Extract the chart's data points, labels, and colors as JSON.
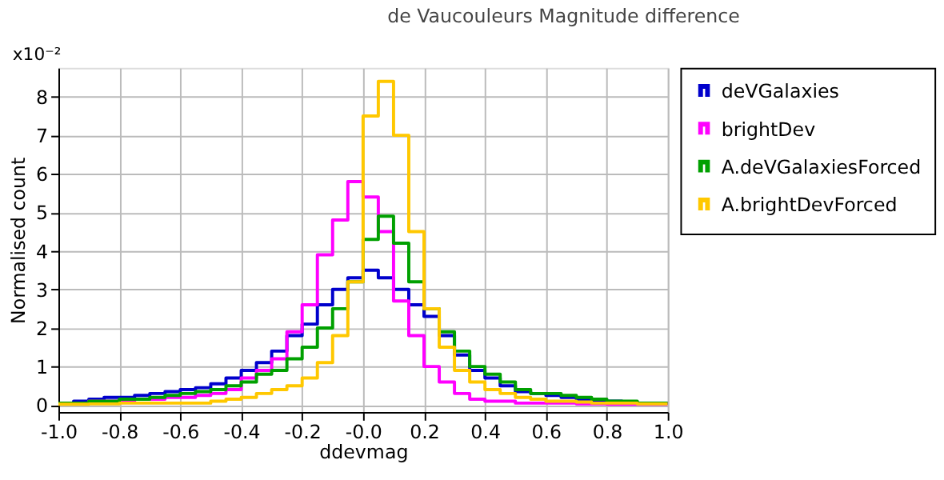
{
  "chart_data": {
    "type": "histogram",
    "title": "de Vaucouleurs Magnitude difference",
    "xlabel": "ddevmag",
    "ylabel": "Normalised count",
    "annotations": [
      "x10⁻²"
    ],
    "bins": [
      -1.0,
      -0.95,
      -0.9,
      -0.85,
      -0.8,
      -0.75,
      -0.7,
      -0.65,
      -0.6,
      -0.55,
      -0.5,
      -0.45,
      -0.4,
      -0.35,
      -0.3,
      -0.25,
      -0.2,
      -0.15,
      -0.1,
      -0.05,
      0.0,
      0.05,
      0.1,
      0.15,
      0.2,
      0.25,
      0.3,
      0.35,
      0.4,
      0.45,
      0.5,
      0.55,
      0.6,
      0.65,
      0.7,
      0.75,
      0.8,
      0.85,
      0.9,
      0.95,
      1.0
    ],
    "series": [
      {
        "name": "deVGalaxies",
        "color": "#0000cc",
        "values": [
          0.05,
          0.1,
          0.15,
          0.2,
          0.2,
          0.25,
          0.3,
          0.35,
          0.4,
          0.45,
          0.55,
          0.7,
          0.9,
          1.1,
          1.4,
          1.8,
          2.1,
          2.6,
          3.0,
          3.3,
          3.5,
          3.3,
          3.0,
          2.6,
          2.3,
          1.8,
          1.3,
          0.9,
          0.7,
          0.5,
          0.35,
          0.3,
          0.25,
          0.2,
          0.15,
          0.1,
          0.1,
          0.08,
          0.05,
          0.05
        ]
      },
      {
        "name": "brightDev",
        "color": "#ff00ff",
        "values": [
          0.05,
          0.05,
          0.1,
          0.1,
          0.1,
          0.15,
          0.15,
          0.2,
          0.2,
          0.25,
          0.3,
          0.4,
          0.7,
          0.9,
          1.2,
          1.9,
          2.6,
          3.9,
          4.8,
          5.8,
          5.4,
          4.5,
          2.7,
          1.8,
          1.0,
          0.6,
          0.3,
          0.15,
          0.1,
          0.1,
          0.05,
          0.05,
          0.05,
          0.05,
          0.03,
          0.03,
          0.02,
          0.02,
          0.02,
          0.02
        ]
      },
      {
        "name": "A.deVGalaxiesForced",
        "color": "#00a000",
        "values": [
          0.05,
          0.05,
          0.1,
          0.1,
          0.15,
          0.15,
          0.2,
          0.25,
          0.3,
          0.35,
          0.4,
          0.5,
          0.6,
          0.8,
          0.9,
          1.2,
          1.5,
          2.0,
          2.5,
          3.2,
          4.3,
          4.9,
          4.2,
          3.2,
          2.5,
          1.9,
          1.4,
          1.0,
          0.8,
          0.6,
          0.4,
          0.3,
          0.3,
          0.25,
          0.2,
          0.15,
          0.1,
          0.1,
          0.05,
          0.05
        ]
      },
      {
        "name": "A.brightDevForced",
        "color": "#ffc800",
        "values": [
          0.02,
          0.02,
          0.03,
          0.03,
          0.05,
          0.05,
          0.05,
          0.05,
          0.05,
          0.05,
          0.1,
          0.15,
          0.2,
          0.3,
          0.4,
          0.5,
          0.7,
          1.1,
          1.8,
          3.2,
          7.5,
          8.4,
          7.0,
          4.5,
          2.5,
          1.5,
          0.9,
          0.6,
          0.4,
          0.3,
          0.2,
          0.15,
          0.1,
          0.1,
          0.08,
          0.05,
          0.05,
          0.05,
          0.03,
          0.03
        ]
      }
    ],
    "xlim": [
      -1.0,
      1.0
    ],
    "xticks": [
      {
        "value": -1.0,
        "label": "-1.0"
      },
      {
        "value": -0.8,
        "label": "-0.8"
      },
      {
        "value": -0.6,
        "label": "-0.6"
      },
      {
        "value": -0.4,
        "label": "-0.4"
      },
      {
        "value": -0.2,
        "label": "-0.2"
      },
      {
        "value": 0.0,
        "label": "-0.0"
      },
      0.2,
      0.4,
      0.6,
      0.8,
      {
        "value": 1.0,
        "label": "1.0"
      }
    ],
    "ylim": [
      -0.18,
      8.75
    ],
    "yticks": [
      0,
      1,
      2,
      3,
      4,
      5,
      6,
      7,
      8
    ],
    "grid": true,
    "legend": "top right",
    "line_style": "solid"
  }
}
